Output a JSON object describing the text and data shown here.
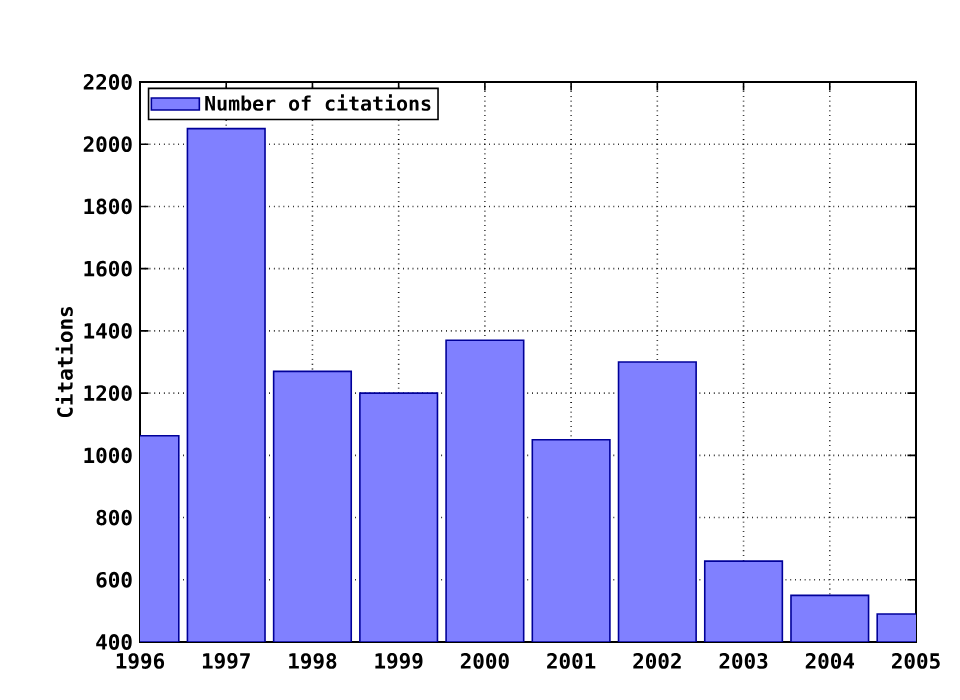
{
  "chart_data": {
    "type": "bar",
    "ylabel": "Citations",
    "x": [
      1996,
      1997,
      1998,
      1999,
      2000,
      2001,
      2002,
      2003,
      2004,
      2005
    ],
    "series": [
      {
        "name": "Number of citations",
        "color": "#8080ff",
        "values": [
          1063,
          2050,
          1270,
          1200,
          1370,
          1050,
          1300,
          660,
          550,
          490
        ]
      }
    ],
    "xlim": [
      1996,
      2005
    ],
    "xticks": [
      1996,
      1997,
      1998,
      1999,
      2000,
      2001,
      2002,
      2003,
      2004,
      2005
    ],
    "ylim": [
      400,
      2200
    ],
    "yticks": [
      400,
      600,
      800,
      1000,
      1200,
      1400,
      1600,
      1800,
      2000,
      2200
    ],
    "grid": true,
    "legend": "top left"
  }
}
